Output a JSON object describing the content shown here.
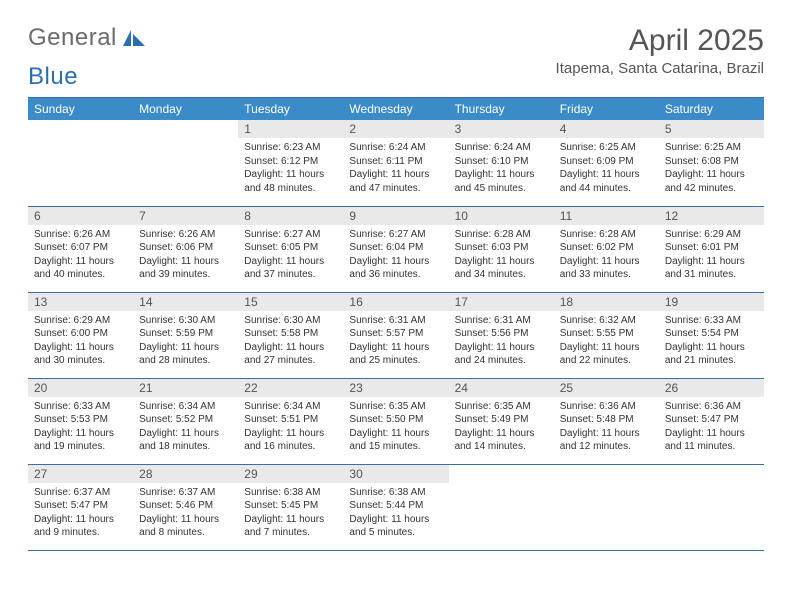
{
  "logo": {
    "text_a": "General",
    "text_b": "Blue"
  },
  "title": "April 2025",
  "location": "Itapema, Santa Catarina, Brazil",
  "colors": {
    "header_bg": "#3b8bc9",
    "header_fg": "#ffffff",
    "daynum_bg": "#e9e9e9",
    "rule": "#3b6fa0",
    "logo_gray": "#6b6b6b",
    "logo_blue": "#2c6fb0"
  },
  "weekdays": [
    "Sunday",
    "Monday",
    "Tuesday",
    "Wednesday",
    "Thursday",
    "Friday",
    "Saturday"
  ],
  "weeks": [
    [
      {
        "empty": true
      },
      {
        "empty": true
      },
      {
        "n": "1",
        "sr": "6:23 AM",
        "ss": "6:12 PM",
        "dh": "11",
        "dm": "48"
      },
      {
        "n": "2",
        "sr": "6:24 AM",
        "ss": "6:11 PM",
        "dh": "11",
        "dm": "47"
      },
      {
        "n": "3",
        "sr": "6:24 AM",
        "ss": "6:10 PM",
        "dh": "11",
        "dm": "45"
      },
      {
        "n": "4",
        "sr": "6:25 AM",
        "ss": "6:09 PM",
        "dh": "11",
        "dm": "44"
      },
      {
        "n": "5",
        "sr": "6:25 AM",
        "ss": "6:08 PM",
        "dh": "11",
        "dm": "42"
      }
    ],
    [
      {
        "n": "6",
        "sr": "6:26 AM",
        "ss": "6:07 PM",
        "dh": "11",
        "dm": "40"
      },
      {
        "n": "7",
        "sr": "6:26 AM",
        "ss": "6:06 PM",
        "dh": "11",
        "dm": "39"
      },
      {
        "n": "8",
        "sr": "6:27 AM",
        "ss": "6:05 PM",
        "dh": "11",
        "dm": "37"
      },
      {
        "n": "9",
        "sr": "6:27 AM",
        "ss": "6:04 PM",
        "dh": "11",
        "dm": "36"
      },
      {
        "n": "10",
        "sr": "6:28 AM",
        "ss": "6:03 PM",
        "dh": "11",
        "dm": "34"
      },
      {
        "n": "11",
        "sr": "6:28 AM",
        "ss": "6:02 PM",
        "dh": "11",
        "dm": "33"
      },
      {
        "n": "12",
        "sr": "6:29 AM",
        "ss": "6:01 PM",
        "dh": "11",
        "dm": "31"
      }
    ],
    [
      {
        "n": "13",
        "sr": "6:29 AM",
        "ss": "6:00 PM",
        "dh": "11",
        "dm": "30"
      },
      {
        "n": "14",
        "sr": "6:30 AM",
        "ss": "5:59 PM",
        "dh": "11",
        "dm": "28"
      },
      {
        "n": "15",
        "sr": "6:30 AM",
        "ss": "5:58 PM",
        "dh": "11",
        "dm": "27"
      },
      {
        "n": "16",
        "sr": "6:31 AM",
        "ss": "5:57 PM",
        "dh": "11",
        "dm": "25"
      },
      {
        "n": "17",
        "sr": "6:31 AM",
        "ss": "5:56 PM",
        "dh": "11",
        "dm": "24"
      },
      {
        "n": "18",
        "sr": "6:32 AM",
        "ss": "5:55 PM",
        "dh": "11",
        "dm": "22"
      },
      {
        "n": "19",
        "sr": "6:33 AM",
        "ss": "5:54 PM",
        "dh": "11",
        "dm": "21"
      }
    ],
    [
      {
        "n": "20",
        "sr": "6:33 AM",
        "ss": "5:53 PM",
        "dh": "11",
        "dm": "19"
      },
      {
        "n": "21",
        "sr": "6:34 AM",
        "ss": "5:52 PM",
        "dh": "11",
        "dm": "18"
      },
      {
        "n": "22",
        "sr": "6:34 AM",
        "ss": "5:51 PM",
        "dh": "11",
        "dm": "16"
      },
      {
        "n": "23",
        "sr": "6:35 AM",
        "ss": "5:50 PM",
        "dh": "11",
        "dm": "15"
      },
      {
        "n": "24",
        "sr": "6:35 AM",
        "ss": "5:49 PM",
        "dh": "11",
        "dm": "14"
      },
      {
        "n": "25",
        "sr": "6:36 AM",
        "ss": "5:48 PM",
        "dh": "11",
        "dm": "12"
      },
      {
        "n": "26",
        "sr": "6:36 AM",
        "ss": "5:47 PM",
        "dh": "11",
        "dm": "11"
      }
    ],
    [
      {
        "n": "27",
        "sr": "6:37 AM",
        "ss": "5:47 PM",
        "dh": "11",
        "dm": "9"
      },
      {
        "n": "28",
        "sr": "6:37 AM",
        "ss": "5:46 PM",
        "dh": "11",
        "dm": "8"
      },
      {
        "n": "29",
        "sr": "6:38 AM",
        "ss": "5:45 PM",
        "dh": "11",
        "dm": "7"
      },
      {
        "n": "30",
        "sr": "6:38 AM",
        "ss": "5:44 PM",
        "dh": "11",
        "dm": "5"
      },
      {
        "empty": true
      },
      {
        "empty": true
      },
      {
        "empty": true
      }
    ]
  ],
  "labels": {
    "sunrise": "Sunrise:",
    "sunset": "Sunset:",
    "daylight": "Daylight:",
    "hours": "hours",
    "and": "and",
    "minutes": "minutes."
  }
}
